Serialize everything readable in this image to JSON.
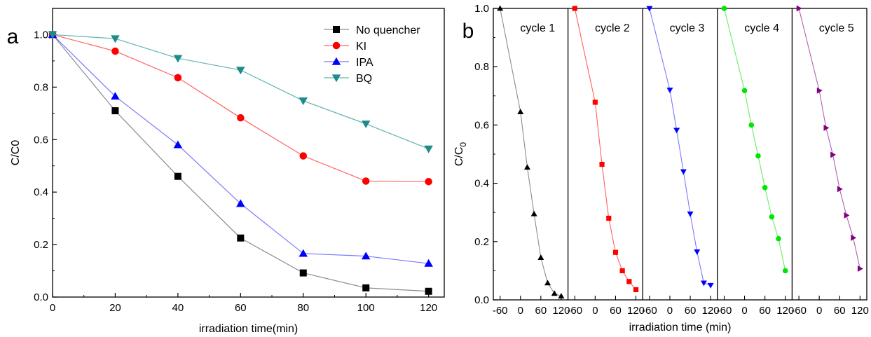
{
  "figure": {
    "panels": [
      "a",
      "b"
    ]
  },
  "chart_data": [
    {
      "type": "line",
      "panel": "a",
      "xlabel": "irradiation time(min)",
      "ylabel": "C/C0",
      "xlim": [
        0,
        125
      ],
      "ylim": [
        0,
        1.1
      ],
      "x_ticks": [
        0,
        20,
        40,
        60,
        80,
        100,
        120
      ],
      "y_ticks": [
        0.0,
        0.2,
        0.4,
        0.6,
        0.8,
        1.0
      ],
      "x_tick_labels": [
        "0",
        "20",
        "40",
        "60",
        "80",
        "100",
        "120"
      ],
      "y_tick_labels": [
        "0.0",
        "0.2",
        "0.4",
        "0.6",
        "0.8",
        "1.0"
      ],
      "legend_position": "top-right",
      "x": [
        0,
        20,
        40,
        60,
        80,
        100,
        120
      ],
      "series": [
        {
          "name": "No quencher",
          "marker": "square",
          "color": "#000000",
          "line_color": "#8c8c8c",
          "values": [
            1.0,
            0.71,
            0.46,
            0.225,
            0.092,
            0.035,
            0.022
          ]
        },
        {
          "name": "KI",
          "marker": "circle",
          "color": "#ff0000",
          "line_color": "#ff6060",
          "values": [
            1.0,
            0.937,
            0.836,
            0.683,
            0.538,
            0.442,
            0.44
          ]
        },
        {
          "name": "IPA",
          "marker": "triangle-up",
          "color": "#0000ff",
          "line_color": "#7a7aff",
          "values": [
            1.0,
            0.765,
            0.58,
            0.356,
            0.166,
            0.156,
            0.128
          ]
        },
        {
          "name": "BQ",
          "marker": "triangle-down",
          "color": "#1f8a8a",
          "line_color": "#5fb3b3",
          "values": [
            1.0,
            0.985,
            0.91,
            0.865,
            0.748,
            0.66,
            0.565
          ]
        }
      ]
    },
    {
      "type": "line",
      "panel": "b",
      "xlabel": "irradiation time (min)",
      "ylabel": "C/C",
      "ylabel_subscript": "0",
      "ylim": [
        0,
        1.0
      ],
      "xlim": [
        -80,
        140
      ],
      "y_ticks": [
        0.0,
        0.2,
        0.4,
        0.6,
        0.8,
        1.0
      ],
      "y_tick_labels": [
        "0.0",
        "0.2",
        "0.4",
        "0.6",
        "0.8",
        "1.0"
      ],
      "x_ticks": [
        -60,
        0,
        60,
        120
      ],
      "x_tick_labels": [
        "-60",
        "0",
        "60",
        "120"
      ],
      "x": [
        -60,
        0,
        20,
        40,
        60,
        80,
        100,
        120
      ],
      "cycles": [
        {
          "name": "cycle 1",
          "marker": "triangle-up",
          "color": "#000000",
          "line_color": "#8c8c8c",
          "values": [
            1.0,
            0.645,
            0.455,
            0.295,
            0.145,
            0.058,
            0.022,
            0.013
          ]
        },
        {
          "name": "cycle 2",
          "marker": "square",
          "color": "#ff0000",
          "line_color": "#ff6060",
          "values": [
            1.0,
            0.678,
            0.465,
            0.28,
            0.163,
            0.1,
            0.063,
            0.035
          ]
        },
        {
          "name": "cycle 3",
          "marker": "triangle-down",
          "color": "#0000ff",
          "line_color": "#7a7aff",
          "values": [
            1.0,
            0.72,
            0.582,
            0.44,
            0.295,
            0.165,
            0.058,
            0.05
          ]
        },
        {
          "name": "cycle 4",
          "marker": "circle",
          "color": "#00e600",
          "line_color": "#66ee66",
          "values": [
            1.0,
            0.718,
            0.6,
            0.494,
            0.385,
            0.285,
            0.21,
            0.1
          ]
        },
        {
          "name": "cycle 5",
          "marker": "triangle-right",
          "color": "#800080",
          "line_color": "#b060b0",
          "values": [
            1.0,
            0.718,
            0.59,
            0.498,
            0.38,
            0.29,
            0.213,
            0.107
          ]
        }
      ]
    }
  ]
}
